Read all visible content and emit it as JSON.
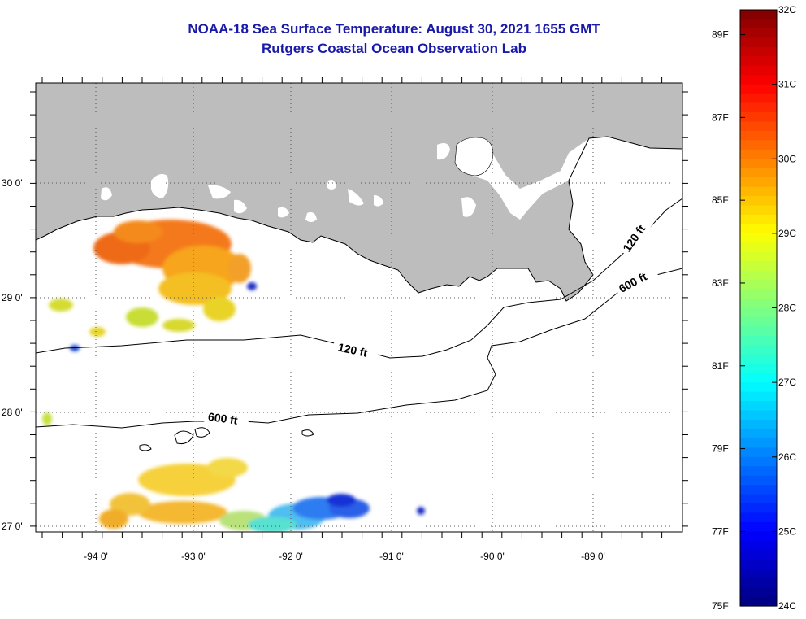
{
  "title_line1": "NOAA-18 Sea Surface Temperature:  August 30, 2021 1655 GMT",
  "title_line2": "Rutgers Coastal Ocean Observation Lab",
  "map": {
    "lat_labels": [
      "30 0'",
      "29 0'",
      "28 0'",
      "27 0'"
    ],
    "lon_labels": [
      "-94 0'",
      "-93 0'",
      "-92 0'",
      "-91 0'",
      "-90 0'",
      "-89 0'"
    ],
    "contour_labels": [
      "120 ft",
      "600 ft",
      "120 ft",
      "600 ft"
    ],
    "land_color": "#bdbdbd"
  },
  "colorbar": {
    "fahrenheit_labels": [
      "89F",
      "87F",
      "85F",
      "83F",
      "81F",
      "79F",
      "77F",
      "75F"
    ],
    "celsius_labels": [
      "32C",
      "31C",
      "30C",
      "29C",
      "28C",
      "27C",
      "26C",
      "25C",
      "24C"
    ],
    "range_c": [
      24,
      32
    ],
    "range_f": [
      75,
      89.6
    ],
    "palette": "jet"
  }
}
